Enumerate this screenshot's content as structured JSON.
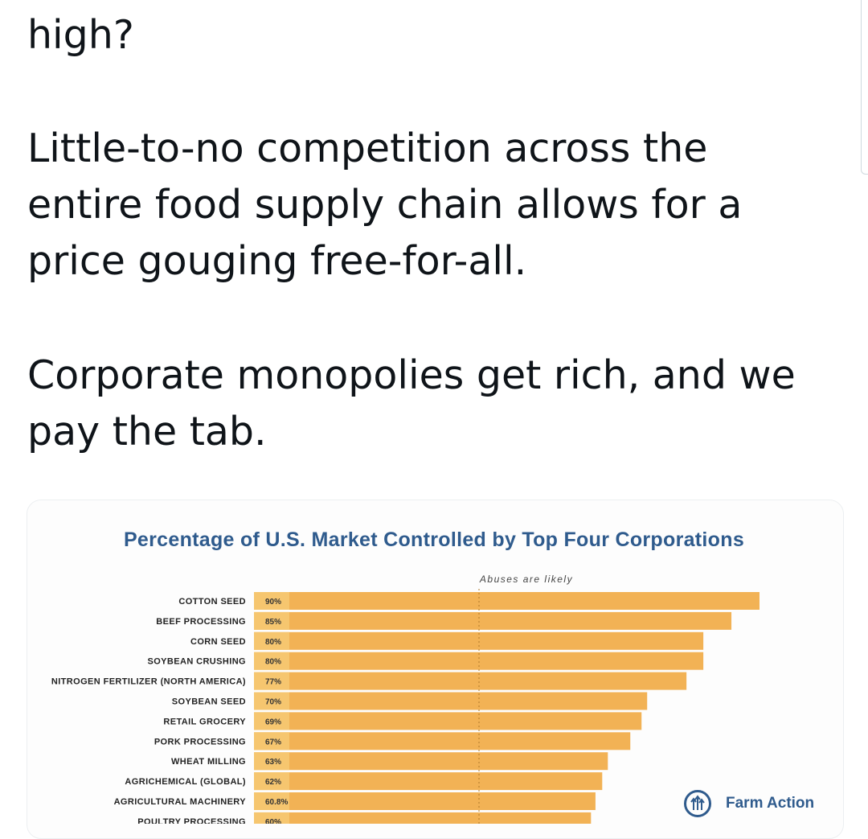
{
  "tweet": {
    "p1": "high?",
    "p2": "Little-to-no competition across the\nentire food supply chain allows for a\nprice gouging free-for-all.",
    "p3": "Corporate monopolies get rich, and we\npay the tab."
  },
  "chart_data": {
    "type": "bar",
    "orientation": "horizontal",
    "title": "Percentage of U.S. Market Controlled by Top Four Corporations",
    "annotation": "Abuses are likely",
    "categories": [
      "COTTON SEED",
      "BEEF PROCESSING",
      "CORN SEED",
      "SOYBEAN CRUSHING",
      "NITROGEN FERTILIZER (NORTH AMERICA)",
      "SOYBEAN SEED",
      "RETAIL GROCERY",
      "PORK PROCESSING",
      "WHEAT MILLING",
      "AGRICHEMICAL (GLOBAL)",
      "AGRICULTURAL MACHINERY",
      "POULTRY PROCESSING"
    ],
    "values": [
      90,
      85,
      80,
      80,
      77,
      70,
      69,
      67,
      63,
      62,
      60.8,
      60
    ],
    "value_labels": [
      "90%",
      "85%",
      "80%",
      "80%",
      "77%",
      "70%",
      "69%",
      "67%",
      "63%",
      "62%",
      "60.8%",
      "60%"
    ],
    "bar_color": "#f2b255",
    "label_box_color": "#f6c66f",
    "title_color": "#2f5b8d"
  },
  "logo": {
    "text": "Farm Action",
    "icon": "farm-action-arrows-icon"
  }
}
